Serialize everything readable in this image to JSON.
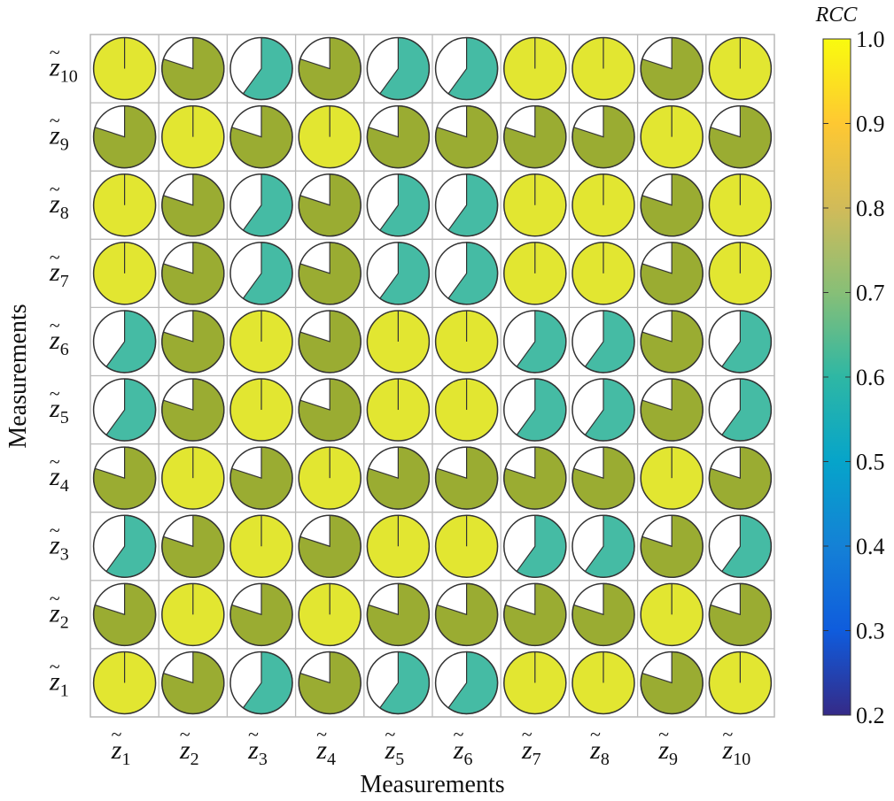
{
  "chart_data": {
    "type": "heatmap",
    "xlabel": "Measurements",
    "ylabel": "Measurements",
    "x_tick_labels": [
      {
        "base": "z",
        "sub": "1"
      },
      {
        "base": "z",
        "sub": "2"
      },
      {
        "base": "z",
        "sub": "3"
      },
      {
        "base": "z",
        "sub": "4"
      },
      {
        "base": "z",
        "sub": "5"
      },
      {
        "base": "z",
        "sub": "6"
      },
      {
        "base": "z",
        "sub": "7"
      },
      {
        "base": "z",
        "sub": "8"
      },
      {
        "base": "z",
        "sub": "9"
      },
      {
        "base": "z",
        "sub": "10"
      }
    ],
    "y_tick_labels": [
      {
        "base": "z",
        "sub": "1"
      },
      {
        "base": "z",
        "sub": "2"
      },
      {
        "base": "z",
        "sub": "3"
      },
      {
        "base": "z",
        "sub": "4"
      },
      {
        "base": "z",
        "sub": "5"
      },
      {
        "base": "z",
        "sub": "6"
      },
      {
        "base": "z",
        "sub": "7"
      },
      {
        "base": "z",
        "sub": "8"
      },
      {
        "base": "z",
        "sub": "9"
      },
      {
        "base": "z",
        "sub": "10"
      }
    ],
    "tick_mark": "~",
    "row_order": "bottom-to-top",
    "values": [
      [
        1.0,
        0.8,
        0.6,
        0.8,
        0.6,
        0.6,
        1.0,
        1.0,
        0.8,
        1.0
      ],
      [
        0.8,
        1.0,
        0.8,
        1.0,
        0.8,
        0.8,
        0.8,
        0.8,
        1.0,
        0.8
      ],
      [
        0.6,
        0.8,
        1.0,
        0.8,
        1.0,
        1.0,
        0.6,
        0.6,
        0.8,
        0.6
      ],
      [
        0.8,
        1.0,
        0.8,
        1.0,
        0.8,
        0.8,
        0.8,
        0.8,
        1.0,
        0.8
      ],
      [
        0.6,
        0.8,
        1.0,
        0.8,
        1.0,
        1.0,
        0.6,
        0.6,
        0.8,
        0.6
      ],
      [
        0.6,
        0.8,
        1.0,
        0.8,
        1.0,
        1.0,
        0.6,
        0.6,
        0.8,
        0.6
      ],
      [
        1.0,
        0.8,
        0.6,
        0.8,
        0.6,
        0.6,
        1.0,
        1.0,
        0.8,
        1.0
      ],
      [
        1.0,
        0.8,
        0.6,
        0.8,
        0.6,
        0.6,
        1.0,
        1.0,
        0.8,
        1.0
      ],
      [
        0.8,
        1.0,
        0.8,
        1.0,
        0.8,
        0.8,
        0.8,
        0.8,
        1.0,
        0.8
      ],
      [
        1.0,
        0.8,
        0.6,
        0.8,
        0.6,
        0.6,
        1.0,
        1.0,
        0.8,
        1.0
      ]
    ],
    "encoding": "pie-fill-and-color",
    "colorbar": {
      "title": "RCC",
      "range": [
        0.2,
        1.0
      ],
      "ticks": [
        "1.0",
        "0.9",
        "0.8",
        "0.7",
        "0.6",
        "0.5",
        "0.4",
        "0.3",
        "0.2"
      ],
      "colormap": "parula",
      "placement": "right"
    },
    "grid": true
  }
}
